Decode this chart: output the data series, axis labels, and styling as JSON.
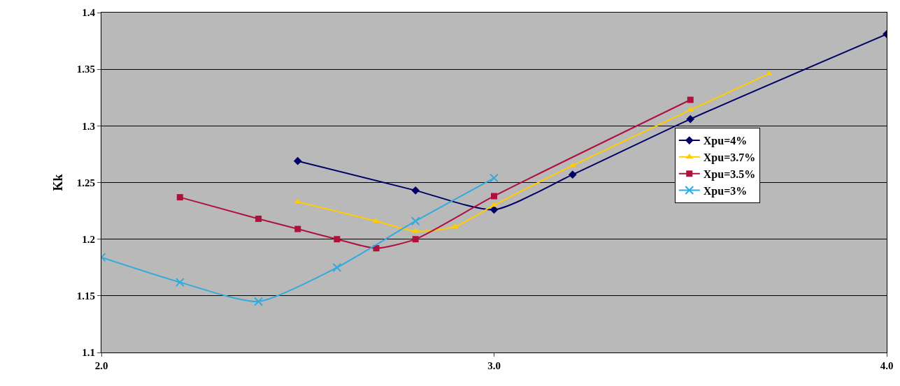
{
  "chart_data": {
    "type": "line",
    "ylabel": "Kk",
    "xlim": [
      2.0,
      4.0
    ],
    "xticks": [
      {
        "value": 2.0,
        "label": "2.0"
      },
      {
        "value": 3.0,
        "label": "3.0"
      },
      {
        "value": 4.0,
        "label": "4.0"
      }
    ],
    "ylim": [
      1.1,
      1.4
    ],
    "yticks": [
      1.1,
      1.15,
      1.2,
      1.25,
      1.3,
      1.35,
      1.4
    ],
    "grid": "y",
    "legend": "right",
    "series": [
      {
        "name": "Xpu=4%",
        "color": "#000066",
        "marker": "diamond",
        "x": [
          2.5,
          2.8,
          3.0,
          3.2,
          3.5,
          4.0
        ],
        "values": [
          1.269,
          1.243,
          1.226,
          1.257,
          1.306,
          1.381
        ]
      },
      {
        "name": "Xpu=3.7%",
        "color": "#ffcc00",
        "marker": "triangle",
        "x": [
          2.5,
          2.7,
          2.8,
          2.9,
          3.0,
          3.2,
          3.5,
          3.7
        ],
        "values": [
          1.233,
          1.216,
          1.207,
          1.211,
          1.23,
          1.265,
          1.314,
          1.346
        ]
      },
      {
        "name": "Xpu=3.5%",
        "color": "#b0103c",
        "marker": "square",
        "x": [
          2.2,
          2.4,
          2.5,
          2.6,
          2.7,
          2.8,
          3.0,
          3.5
        ],
        "values": [
          1.237,
          1.218,
          1.209,
          1.2,
          1.192,
          1.2,
          1.238,
          1.323
        ]
      },
      {
        "name": "Xpu=3%",
        "color": "#33aadd",
        "marker": "cross",
        "x": [
          2.0,
          2.2,
          2.4,
          2.6,
          2.8,
          3.0
        ],
        "values": [
          1.184,
          1.162,
          1.145,
          1.175,
          1.216,
          1.254
        ]
      }
    ]
  }
}
